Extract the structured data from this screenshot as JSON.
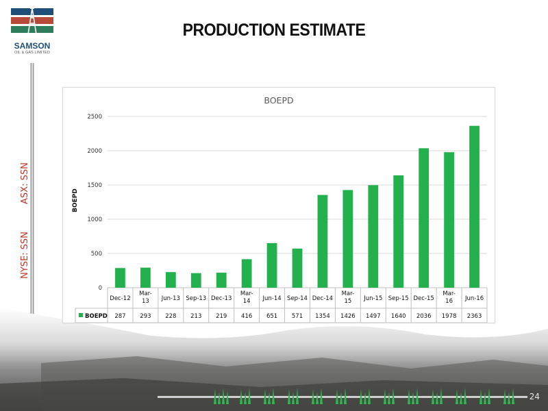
{
  "brand": {
    "name": "SAMSON",
    "subname": "OIL & GAS LIMITED"
  },
  "slide": {
    "title": "PRODUCTION ESTIMATE",
    "page_number": "24"
  },
  "tickers": {
    "asx": "ASX: SSN",
    "nyse": "NYSE: SSN"
  },
  "colors": {
    "bar": "#22b14c",
    "accent_red": "#c0392b",
    "logo_blue": "#1f4e79",
    "logo_red": "#b84a3a",
    "logo_green": "#2e7d5b"
  },
  "chart_data": {
    "type": "bar",
    "title": "BOEPD",
    "ylabel": "BOEPD",
    "xlabel": "",
    "ylim": [
      0,
      2500
    ],
    "yticks": [
      "0",
      "500",
      "1000",
      "1500",
      "2000",
      "2500"
    ],
    "grid": true,
    "legend": "data-table",
    "categories": [
      [
        "Dec-12"
      ],
      [
        "Mar-",
        "13"
      ],
      [
        "Jun-13"
      ],
      [
        "Sep-13"
      ],
      [
        "Dec-13"
      ],
      [
        "Mar-",
        "14"
      ],
      [
        "Jun-14"
      ],
      [
        "Sep-14"
      ],
      [
        "Dec-14"
      ],
      [
        "Mar-",
        "15"
      ],
      [
        "Jun-15"
      ],
      [
        "Sep-15"
      ],
      [
        "Dec-15"
      ],
      [
        "Mar-",
        "16"
      ],
      [
        "Jun-16"
      ]
    ],
    "series": [
      {
        "name": "BOEPD",
        "values": [
          287,
          293,
          228,
          213,
          219,
          416,
          651,
          571,
          1354,
          1426,
          1497,
          1640,
          2036,
          1978,
          2363
        ]
      }
    ]
  }
}
